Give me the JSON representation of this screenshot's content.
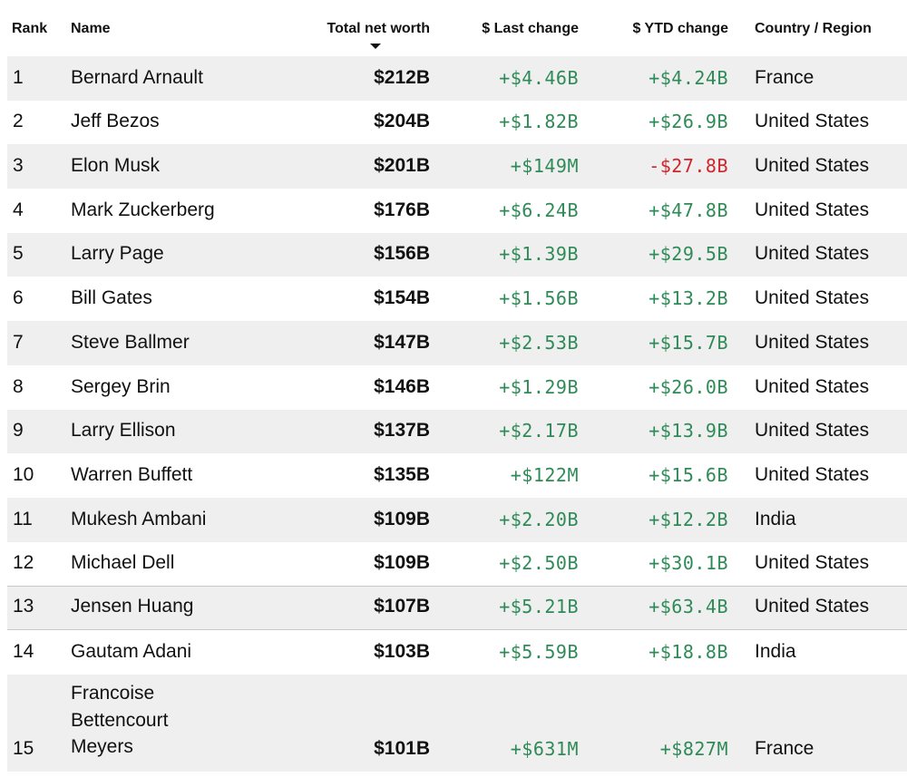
{
  "columns": {
    "rank": "Rank",
    "name": "Name",
    "worth": "Total net worth",
    "last": "$ Last change",
    "ytd": "$ YTD change",
    "country": "Country / Region"
  },
  "colors": {
    "positive": "#2e8a57",
    "negative": "#d0242b",
    "row_shade": "#efefef"
  },
  "sort_icon": "caret-down-icon",
  "rows": [
    {
      "rank": "1",
      "name": "Bernard Arnault",
      "worth": "$212B",
      "last": "+$4.46B",
      "ytd": "+$4.24B",
      "country": "France"
    },
    {
      "rank": "2",
      "name": "Jeff Bezos",
      "worth": "$204B",
      "last": "+$1.82B",
      "ytd": "+$26.9B",
      "country": "United States"
    },
    {
      "rank": "3",
      "name": "Elon Musk",
      "worth": "$201B",
      "last": "+$149M",
      "ytd": "-$27.8B",
      "country": "United States"
    },
    {
      "rank": "4",
      "name": "Mark Zuckerberg",
      "worth": "$176B",
      "last": "+$6.24B",
      "ytd": "+$47.8B",
      "country": "United States"
    },
    {
      "rank": "5",
      "name": "Larry Page",
      "worth": "$156B",
      "last": "+$1.39B",
      "ytd": "+$29.5B",
      "country": "United States"
    },
    {
      "rank": "6",
      "name": "Bill Gates",
      "worth": "$154B",
      "last": "+$1.56B",
      "ytd": "+$13.2B",
      "country": "United States"
    },
    {
      "rank": "7",
      "name": "Steve Ballmer",
      "worth": "$147B",
      "last": "+$2.53B",
      "ytd": "+$15.7B",
      "country": "United States"
    },
    {
      "rank": "8",
      "name": "Sergey Brin",
      "worth": "$146B",
      "last": "+$1.29B",
      "ytd": "+$26.0B",
      "country": "United States"
    },
    {
      "rank": "9",
      "name": "Larry Ellison",
      "worth": "$137B",
      "last": "+$2.17B",
      "ytd": "+$13.9B",
      "country": "United States"
    },
    {
      "rank": "10",
      "name": "Warren Buffett",
      "worth": "$135B",
      "last": "+$122M",
      "ytd": "+$15.6B",
      "country": "United States"
    },
    {
      "rank": "11",
      "name": "Mukesh Ambani",
      "worth": "$109B",
      "last": "+$2.20B",
      "ytd": "+$12.2B",
      "country": "India"
    },
    {
      "rank": "12",
      "name": "Michael Dell",
      "worth": "$109B",
      "last": "+$2.50B",
      "ytd": "+$30.1B",
      "country": "United States"
    },
    {
      "rank": "13",
      "name": "Jensen Huang",
      "worth": "$107B",
      "last": "+$5.21B",
      "ytd": "+$63.4B",
      "country": "United States"
    },
    {
      "rank": "14",
      "name": "Gautam Adani",
      "worth": "$103B",
      "last": "+$5.59B",
      "ytd": "+$18.8B",
      "country": "India"
    },
    {
      "rank": "15",
      "name": "Francoise Bettencourt Meyers",
      "worth": "$101B",
      "last": "+$631M",
      "ytd": "+$827M",
      "country": "France"
    }
  ]
}
